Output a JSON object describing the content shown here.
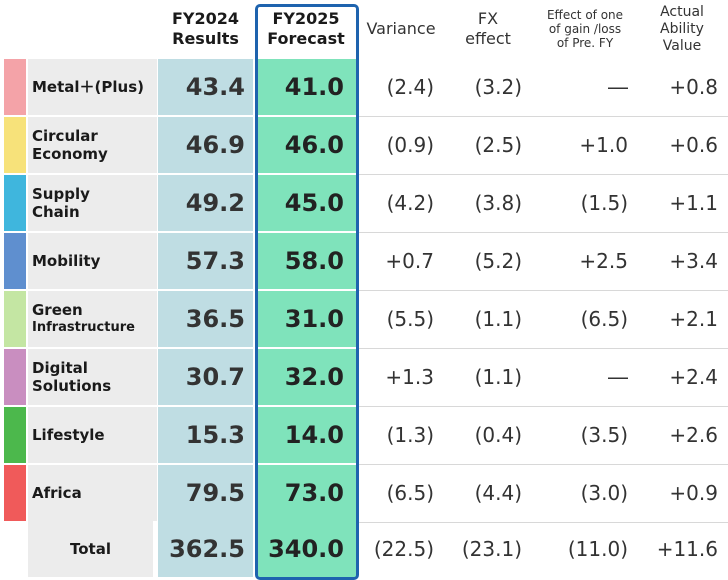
{
  "headers": {
    "fy2024_line1": "FY2024",
    "fy2024_line2": "Results",
    "fy2025_line1": "FY2025",
    "fy2025_line2": "Forecast",
    "variance": "Variance",
    "fx_line1": "FX",
    "fx_line2": "effect",
    "effect_line1": "Effect of one",
    "effect_line2": "of gain /loss",
    "effect_line3": "of Pre. FY",
    "actual_line1": "Actual",
    "actual_line2": "Ability",
    "actual_line3": "Value"
  },
  "rows": [
    {
      "name_l1": "Metal＋(Plus)",
      "name_l2": "",
      "color": "#f4a3a8",
      "fy2024": "43.4",
      "fy2025": "41.0",
      "variance": "(2.4)",
      "fx": "(3.2)",
      "effect": "―",
      "actual": "+0.8"
    },
    {
      "name_l1": "Circular",
      "name_l2": "Economy",
      "color": "#f7e27a",
      "fy2024": "46.9",
      "fy2025": "46.0",
      "variance": "(0.9)",
      "fx": "(2.5)",
      "effect": "+1.0",
      "actual": "+0.6"
    },
    {
      "name_l1": "Supply",
      "name_l2": "Chain",
      "color": "#3fb6dd",
      "fy2024": "49.2",
      "fy2025": "45.0",
      "variance": "(4.2)",
      "fx": "(3.8)",
      "effect": "(1.5)",
      "actual": "+1.1"
    },
    {
      "name_l1": "Mobility",
      "name_l2": "",
      "color": "#5f8fcf",
      "fy2024": "57.3",
      "fy2025": "58.0",
      "variance": "+0.7",
      "fx": "(5.2)",
      "effect": "+2.5",
      "actual": "+3.4"
    },
    {
      "name_l1": "Green",
      "name_l2": "Infrastructure",
      "color": "#c4e6a3",
      "fy2024": "36.5",
      "fy2025": "31.0",
      "variance": "(5.5)",
      "fx": "(1.1)",
      "effect": "(6.5)",
      "actual": "+2.1"
    },
    {
      "name_l1": "Digital",
      "name_l2": "Solutions",
      "color": "#c98ec0",
      "fy2024": "30.7",
      "fy2025": "32.0",
      "variance": "+1.3",
      "fx": "(1.1)",
      "effect": "―",
      "actual": "+2.4"
    },
    {
      "name_l1": "Lifestyle",
      "name_l2": "",
      "color": "#4cb84c",
      "fy2024": "15.3",
      "fy2025": "14.0",
      "variance": "(1.3)",
      "fx": "(0.4)",
      "effect": "(3.5)",
      "actual": "+2.6"
    },
    {
      "name_l1": "Africa",
      "name_l2": "",
      "color": "#f05a5a",
      "fy2024": "79.5",
      "fy2025": "73.0",
      "variance": "(6.5)",
      "fx": "(4.4)",
      "effect": "(3.0)",
      "actual": "+0.9"
    }
  ],
  "total": {
    "label": "Total",
    "fy2024": "362.5",
    "fy2025": "340.0",
    "variance": "(22.5)",
    "fx": "(23.1)",
    "effect": "(11.0)",
    "actual": "+11.6"
  },
  "colors": {
    "fy2024_bg": "#bfdde3",
    "fy2025_bg": "#7fe3bb",
    "frame": "#1e63ae",
    "label_bg": "#ececec"
  }
}
